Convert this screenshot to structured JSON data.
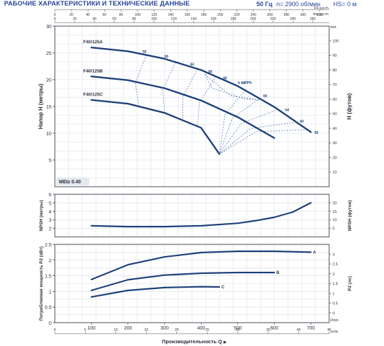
{
  "header": {
    "title": "РАБОЧИЕ ХАРАКТЕРИСТИКИ И ТЕХНИЧЕСКИЕ ДАННЫЕ",
    "frequency": "50 Гц",
    "speed": "n= 2900 об/мин",
    "suction_height": "HS= 0 м"
  },
  "colors": {
    "curve": "#1d3f7a",
    "iso": "#5a7fb5",
    "grid": "#d7dce6",
    "frame": "#303844",
    "text": "#2a2f3a",
    "accent": "#27479a"
  },
  "chart_data": [
    {
      "type": "line",
      "name": "head",
      "ylabel": "Напор H (метры)",
      "ylabel_right": "H (футов)",
      "ylim": [
        0,
        30
      ],
      "yticks": [
        5,
        10,
        15,
        20,
        25,
        30
      ],
      "xlim": [
        0,
        750
      ],
      "top_axis_labels": [
        "US g.p.m.",
        "Imp g.p.m.",
        "feet"
      ],
      "top_axis_us_gpm": [
        "0",
        "20",
        "40",
        "60",
        "80",
        "100",
        "120",
        "140",
        "160",
        "180",
        "200",
        "220",
        "240",
        "260",
        "280",
        "300",
        "320"
      ],
      "top_axis_imp_gpm": [
        "0",
        "20",
        "40",
        "60",
        "80",
        "100",
        "120",
        "140",
        "160",
        "180",
        "200",
        "220",
        "240",
        "260"
      ],
      "right_ticks_feet": [
        "10",
        "20",
        "30",
        "40",
        "50",
        "60",
        "70",
        "80",
        "90",
        "100"
      ],
      "series": [
        {
          "name": "F40/125A",
          "x": [
            100,
            200,
            300,
            400,
            500,
            600,
            700
          ],
          "y": [
            26.0,
            25.3,
            23.9,
            21.8,
            18.8,
            14.9,
            10.2
          ]
        },
        {
          "name": "F40/125B",
          "x": [
            100,
            200,
            300,
            400,
            500,
            600
          ],
          "y": [
            20.6,
            19.9,
            18.4,
            16.1,
            13.0,
            9.1
          ]
        },
        {
          "name": "F40/125C",
          "x": [
            100,
            200,
            300,
            400,
            450
          ],
          "y": [
            16.2,
            15.5,
            13.8,
            11.0,
            6.1
          ]
        }
      ],
      "efficiency_labels": [
        "55",
        "60",
        "64",
        "66",
        "68",
        "η = 69%",
        "68",
        "66",
        "64",
        "60",
        "55"
      ],
      "mei_label": "MEI≥ 0.40"
    },
    {
      "type": "line",
      "name": "npsh",
      "ylabel": "NPSH (метры)",
      "ylabel_right": "NPSH (футов)",
      "ylim": [
        1,
        6
      ],
      "yticks": [
        2,
        3,
        4,
        5,
        6
      ],
      "right_ticks": [
        "5",
        "10",
        "15",
        "20"
      ],
      "series": [
        {
          "x": [
            100,
            200,
            300,
            400,
            500,
            550,
            600,
            650,
            700
          ],
          "y": [
            2.3,
            2.2,
            2.2,
            2.3,
            2.6,
            2.9,
            3.3,
            3.9,
            5.0
          ]
        }
      ]
    },
    {
      "type": "line",
      "name": "power",
      "ylabel": "Потребляемая мощность P2 (кВт)",
      "ylabel_right": "P2 (лс)",
      "ylim": [
        0,
        2.5
      ],
      "yticks": [
        0,
        0.5,
        1,
        1.5,
        2,
        2.5
      ],
      "right_ticks": [
        "0",
        "0.5",
        "1",
        "1.5",
        "2",
        "2.5",
        "3"
      ],
      "xlabel": "Производительность Q",
      "x_ticks_lmin": [
        "100",
        "200",
        "300",
        "400",
        "500",
        "600",
        "700"
      ],
      "x_unit_lmin": "l/min",
      "x_ticks_m3h": [
        "0",
        "5",
        "10",
        "15",
        "20",
        "25",
        "30",
        "35",
        "40",
        "45"
      ],
      "x_unit_m3h": "m³/h",
      "series": [
        {
          "name": "A",
          "x": [
            100,
            200,
            300,
            400,
            500,
            600,
            700
          ],
          "y": [
            1.38,
            1.85,
            2.1,
            2.24,
            2.28,
            2.28,
            2.25
          ]
        },
        {
          "name": "B",
          "x": [
            100,
            200,
            300,
            400,
            500,
            600
          ],
          "y": [
            1.03,
            1.37,
            1.52,
            1.58,
            1.6,
            1.6
          ]
        },
        {
          "name": "C",
          "x": [
            100,
            200,
            300,
            400,
            450
          ],
          "y": [
            0.82,
            1.03,
            1.12,
            1.15,
            1.14
          ]
        }
      ]
    }
  ]
}
